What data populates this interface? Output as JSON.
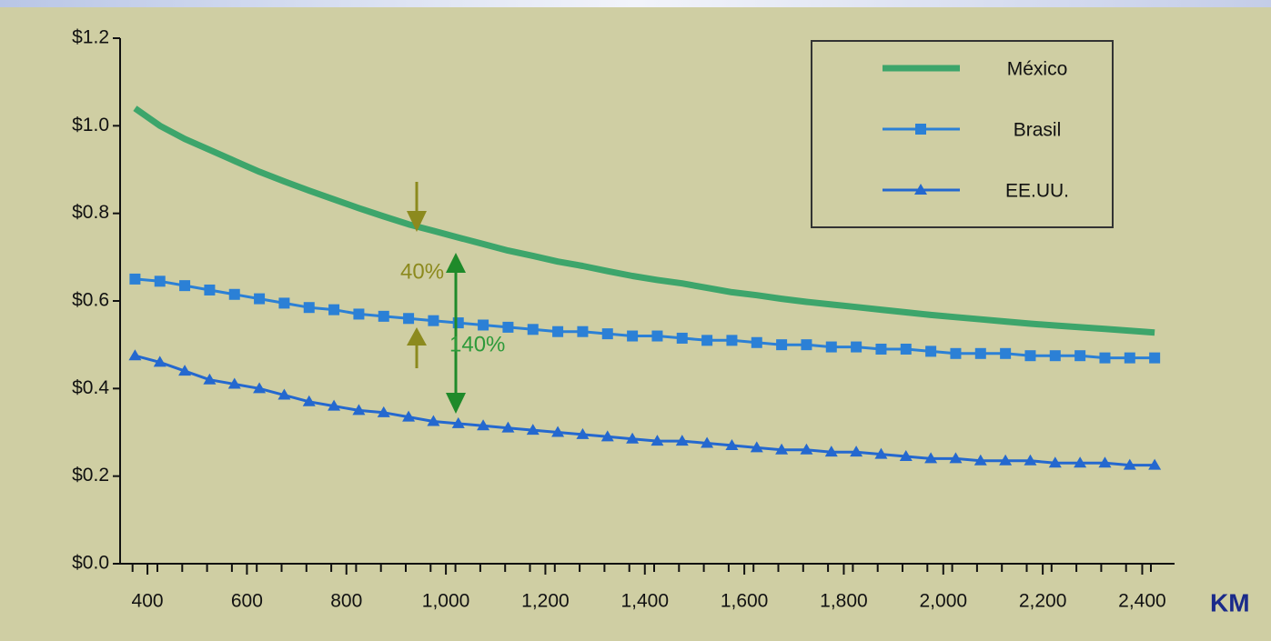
{
  "chart_data": {
    "type": "line",
    "x_label": "KM",
    "annotations": [
      "40%",
      "140%"
    ],
    "x": [
      375,
      425,
      475,
      525,
      575,
      625,
      675,
      725,
      775,
      825,
      875,
      925,
      975,
      1025,
      1075,
      1125,
      1175,
      1225,
      1275,
      1325,
      1375,
      1425,
      1475,
      1525,
      1575,
      1625,
      1675,
      1725,
      1775,
      1825,
      1875,
      1925,
      1975,
      2025,
      2075,
      2125,
      2175,
      2225,
      2275,
      2325,
      2375,
      2425
    ],
    "series": [
      {
        "name": "México",
        "color": "#3da56b",
        "marker": "none",
        "values": [
          1.04,
          1.0,
          0.97,
          0.945,
          0.92,
          0.895,
          0.873,
          0.852,
          0.832,
          0.812,
          0.793,
          0.775,
          0.76,
          0.745,
          0.73,
          0.715,
          0.703,
          0.69,
          0.68,
          0.668,
          0.657,
          0.648,
          0.64,
          0.63,
          0.62,
          0.613,
          0.605,
          0.598,
          0.592,
          0.586,
          0.58,
          0.574,
          0.568,
          0.563,
          0.558,
          0.553,
          0.548,
          0.544,
          0.54,
          0.536,
          0.532,
          0.528
        ]
      },
      {
        "name": "Brasil",
        "color": "#2b80d6",
        "marker": "square",
        "values": [
          0.65,
          0.645,
          0.635,
          0.625,
          0.615,
          0.605,
          0.595,
          0.585,
          0.58,
          0.57,
          0.565,
          0.56,
          0.555,
          0.55,
          0.545,
          0.54,
          0.535,
          0.53,
          0.53,
          0.525,
          0.52,
          0.52,
          0.515,
          0.51,
          0.51,
          0.505,
          0.5,
          0.5,
          0.495,
          0.495,
          0.49,
          0.49,
          0.485,
          0.48,
          0.48,
          0.48,
          0.475,
          0.475,
          0.475,
          0.47,
          0.47,
          0.47
        ]
      },
      {
        "name": "EE.UU.",
        "color": "#2468cf",
        "marker": "triangle",
        "values": [
          0.475,
          0.46,
          0.44,
          0.42,
          0.41,
          0.4,
          0.385,
          0.37,
          0.36,
          0.35,
          0.345,
          0.335,
          0.325,
          0.32,
          0.315,
          0.31,
          0.305,
          0.3,
          0.295,
          0.29,
          0.285,
          0.28,
          0.28,
          0.275,
          0.27,
          0.265,
          0.26,
          0.26,
          0.255,
          0.255,
          0.25,
          0.245,
          0.24,
          0.24,
          0.235,
          0.235,
          0.235,
          0.23,
          0.23,
          0.23,
          0.225,
          0.225
        ]
      }
    ],
    "xlim": [
      345,
      2465
    ],
    "xticks": [
      400,
      600,
      800,
      {
        "value": 1000,
        "label": "1,000"
      },
      {
        "value": 1200,
        "label": "1,200"
      },
      {
        "value": 1400,
        "label": "1,400"
      },
      {
        "value": 1600,
        "label": "1,600"
      },
      {
        "value": 1800,
        "label": "1,800"
      },
      {
        "value": 2000,
        "label": "2,000"
      },
      {
        "value": 2200,
        "label": "2,200"
      },
      {
        "value": 2400,
        "label": "2,400"
      }
    ],
    "ylim": [
      0,
      1.2
    ],
    "yticks": [
      {
        "value": 0,
        "label": "$0.0"
      },
      {
        "value": 0.2,
        "label": "$0.2"
      },
      {
        "value": 0.4,
        "label": "$0.4"
      },
      {
        "value": 0.6,
        "label": "$0.6"
      },
      {
        "value": 0.8,
        "label": "$0.8"
      },
      {
        "value": 1.0,
        "label": "$1.0"
      },
      {
        "value": 1.2,
        "label": "$1.2"
      }
    ],
    "legend": "top-right"
  }
}
